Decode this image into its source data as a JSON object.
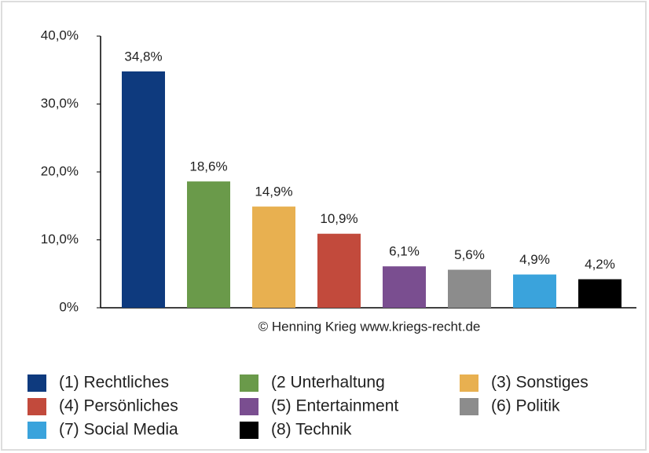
{
  "chart_data": {
    "type": "bar",
    "categories": [
      "(1) Rechtliches",
      "(2 Unterhaltung",
      "(3) Sonstiges",
      "(4) Persönliches",
      "(5) Entertainment",
      "(6) Politik",
      "(7) Social Media",
      "(8) Technik"
    ],
    "values": [
      34.8,
      18.6,
      14.9,
      10.9,
      6.1,
      5.6,
      4.9,
      4.2
    ],
    "value_labels": [
      "34,8%",
      "18,6%",
      "14,9%",
      "10,9%",
      "6,1%",
      "5,6%",
      "4,9%",
      "4,2%"
    ],
    "colors": [
      "#0e3a7e",
      "#6a9a4a",
      "#e8b050",
      "#c24a3c",
      "#7a4e90",
      "#8c8c8c",
      "#3aa3dc",
      "#000000"
    ],
    "ylim": [
      0,
      40
    ],
    "yticks": [
      {
        "value": 0,
        "label": "0%"
      },
      {
        "value": 10,
        "label": "10,0%"
      },
      {
        "value": 20,
        "label": "20,0%"
      },
      {
        "value": 30,
        "label": "30,0%"
      },
      {
        "value": 40,
        "label": "40,0%"
      }
    ],
    "annotation": "© Henning Krieg www.kriegs-recht.de",
    "legend": "bottom"
  }
}
